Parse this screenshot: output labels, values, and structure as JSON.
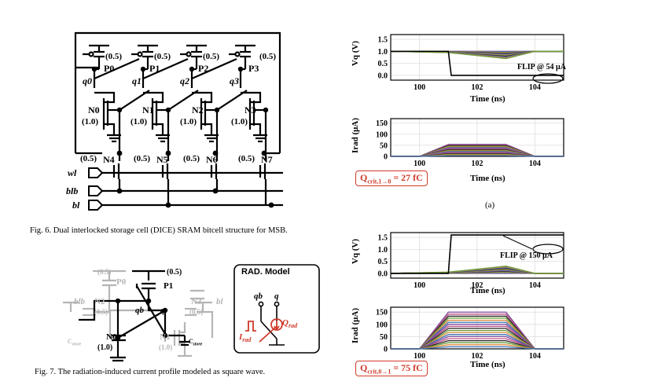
{
  "fig6": {
    "caption": "Fig. 6.  Dual interlocked storage cell (DICE) SRAM bitcell structure for MSB.",
    "pmos": [
      {
        "name": "P0",
        "size": "(0.5)",
        "node": "q0"
      },
      {
        "name": "P1",
        "size": "(0.5)",
        "node": "q1"
      },
      {
        "name": "P2",
        "size": "(0.5)",
        "node": "q2"
      },
      {
        "name": "P3",
        "size": "(0.5)",
        "node": "q3"
      }
    ],
    "nmos": [
      {
        "name": "N0",
        "size": "(1.0)"
      },
      {
        "name": "N1",
        "size": "(1.0)"
      },
      {
        "name": "N2",
        "size": "(1.0)"
      },
      {
        "name": "N3",
        "size": "(1.0)"
      }
    ],
    "access": [
      {
        "name": "N4",
        "size": "(0.5)"
      },
      {
        "name": "N5",
        "size": "(0.5)"
      },
      {
        "name": "N6",
        "size": "(0.5)"
      },
      {
        "name": "N7",
        "size": "(0.5)"
      }
    ],
    "ports": {
      "wl": "wl",
      "blb": "blb",
      "bl": "bl"
    }
  },
  "fig7": {
    "caption": "Fig. 7.  The radiation-induced current profile modeled as square wave.",
    "labels": {
      "p0": "P0",
      "p0_size": "(0.5)",
      "p1": "P1",
      "p1_size": "(0.5)",
      "n0": "N0",
      "n0_size": "(1.0)",
      "n1": "N1",
      "n1_size": "(1.0)",
      "n2": "N2",
      "n2_size": "(0.5)",
      "n3": "N3",
      "n3_size": "(0.5)",
      "qb": "qb",
      "q": "q",
      "blb": "blb",
      "bl": "bl",
      "cstore": "C",
      "cstore_sub": "store"
    },
    "rad_model": {
      "title": "RAD. Model",
      "qb": "qb",
      "q": "q",
      "irad": "I",
      "irad_sub": "rad",
      "qrad": "Q",
      "qrad_sub": "rad"
    }
  },
  "plots": {
    "top": {
      "vq": {
        "ylabel": "Vq (V)",
        "yticks": [
          "1.5",
          "1.0",
          "0.5",
          "0.0"
        ],
        "xticks": [
          "100",
          "102",
          "104"
        ],
        "xlabel": "Time (ns)",
        "flip_label": "FLIP @ 54 μA"
      },
      "irad": {
        "ylabel": "Irad (μA)",
        "yticks": [
          "150",
          "100",
          "50",
          "0"
        ],
        "xticks": [
          "100",
          "102",
          "104"
        ],
        "xlabel": "Time (ns)"
      },
      "qcrit": {
        "main": "Q",
        "sub": "crit,1→0",
        "value": " = 27 fC"
      },
      "sub_label": "(a)"
    },
    "bottom": {
      "vq": {
        "ylabel": "Vq (V)",
        "yticks": [
          "1.5",
          "1.0",
          "0.5",
          "0.0"
        ],
        "xticks": [
          "100",
          "102",
          "104"
        ],
        "xlabel": "Time (ns)",
        "flip_label": "FLIP @ 150 μA"
      },
      "irad": {
        "ylabel": "Irad (μA)",
        "yticks": [
          "150",
          "100",
          "50",
          "0"
        ],
        "xticks": [
          "100",
          "102",
          "104"
        ],
        "xlabel": "Time (ns)"
      },
      "qcrit": {
        "main": "Q",
        "sub": "crit,0→1",
        "value": " = 75 fC"
      }
    }
  },
  "chart_data": [
    {
      "type": "line",
      "title": "",
      "xlabel": "Time (ns)",
      "ylabel": "Vq (V)",
      "xlim": [
        99,
        105
      ],
      "ylim": [
        -0.2,
        1.7
      ],
      "series": [
        {
          "x": [
            99,
            101.0,
            101.1,
            105
          ],
          "y": [
            1.0,
            1.0,
            0.0,
            0.0
          ]
        },
        {
          "x": [
            99,
            101.0,
            103.0,
            104.0,
            105
          ],
          "y": [
            1.0,
            0.95,
            0.7,
            1.0,
            1.0
          ]
        }
      ],
      "annotation": "FLIP @ 54 μA"
    },
    {
      "type": "area",
      "xlabel": "Time (ns)",
      "ylabel": "Irad (μA)",
      "xlim": [
        99,
        105
      ],
      "ylim": [
        0,
        170
      ],
      "pulse": {
        "x": [
          100.0,
          101.0,
          103.0,
          104.0
        ],
        "peak": 54
      }
    },
    {
      "type": "line",
      "xlabel": "Time (ns)",
      "ylabel": "Vq (V)",
      "xlim": [
        99,
        105
      ],
      "ylim": [
        -0.2,
        1.7
      ],
      "series": [
        {
          "x": [
            99,
            101.0,
            101.1,
            105
          ],
          "y": [
            0.0,
            0.0,
            1.6,
            1.6
          ]
        },
        {
          "x": [
            99,
            101.0,
            103.0,
            104.0,
            105
          ],
          "y": [
            0.0,
            0.05,
            0.3,
            0.0,
            0.0
          ]
        }
      ],
      "annotation": "FLIP @ 150 μA"
    },
    {
      "type": "area",
      "xlabel": "Time (ns)",
      "ylabel": "Irad (μA)",
      "xlim": [
        99,
        105
      ],
      "ylim": [
        0,
        170
      ],
      "pulse": {
        "x": [
          100.0,
          101.0,
          103.0,
          104.0
        ],
        "peak": 150
      }
    }
  ]
}
